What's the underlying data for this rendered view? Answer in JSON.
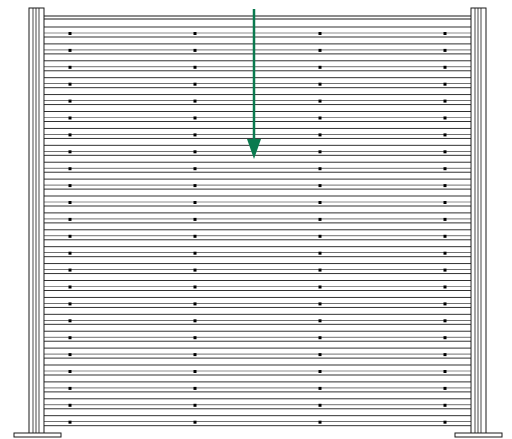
{
  "colors": {
    "line": "#1a1a1a",
    "screw": "#000000",
    "arrow": "#0a7a4f",
    "background": "#ffffff"
  },
  "fence": {
    "slat_count": 24,
    "screw_columns": 4,
    "arrow_direction": "down",
    "icon": "fence-panel-diagram"
  }
}
